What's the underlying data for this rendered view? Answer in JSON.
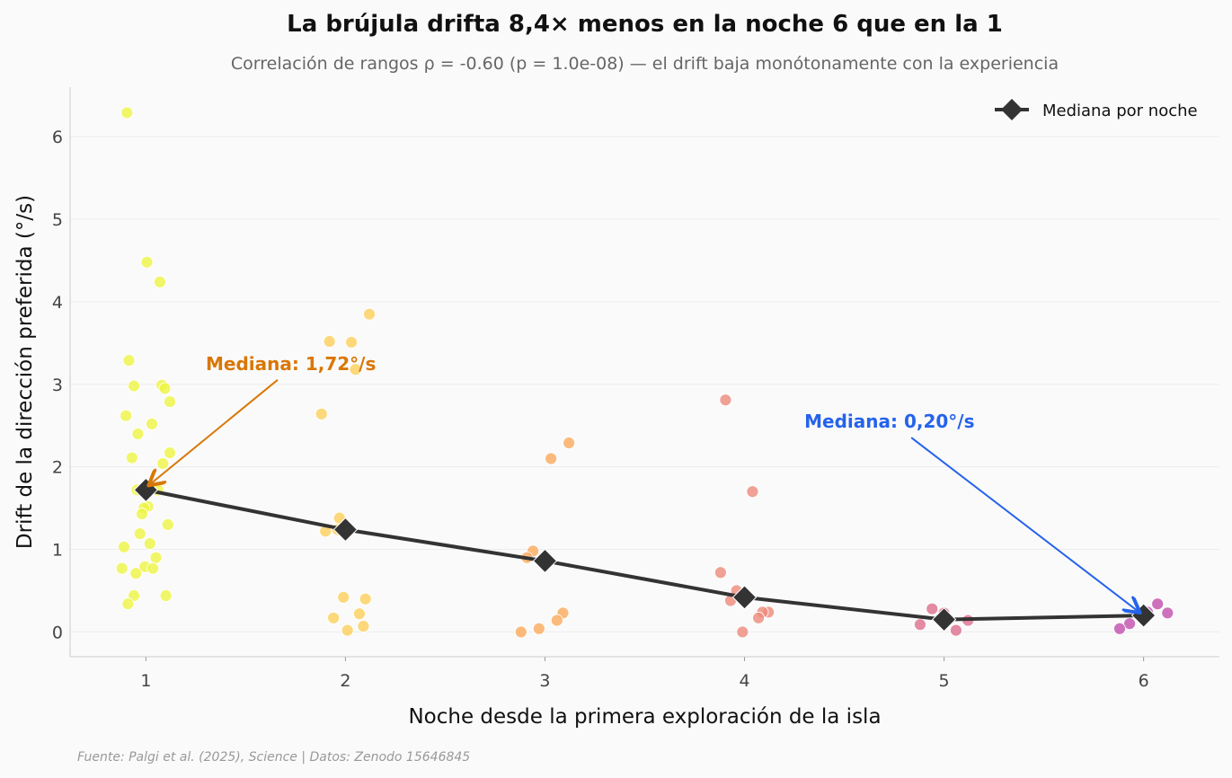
{
  "chart_data": {
    "type": "scatter",
    "title": "La brújula drifta 8,4× menos en la noche 6 que en la 1",
    "subtitle": "Correlación de rangos ρ = -0.60 (p = 1.0e-08) — el drift baja monótonamente con la experiencia",
    "xlabel": "Noche desde la primera exploración de la isla",
    "ylabel": "Drift de la dirección preferida (°/s)",
    "xlim": [
      0.62,
      6.38
    ],
    "ylim": [
      -0.3,
      6.6
    ],
    "xticks": [
      1,
      2,
      3,
      4,
      5,
      6
    ],
    "yticks": [
      0,
      1,
      2,
      3,
      4,
      5,
      6
    ],
    "grid": "horizontal",
    "legend_position": "top-right",
    "source": "Fuente: Palgi et al. (2025), Science | Datos: Zenodo 15646845",
    "groups": [
      {
        "night": 1,
        "color": "#eef542",
        "points": [
          [
            0.905,
            6.29
          ],
          [
            1.005,
            4.48
          ],
          [
            1.07,
            4.24
          ],
          [
            0.915,
            3.29
          ],
          [
            0.94,
            2.98
          ],
          [
            1.08,
            2.99
          ],
          [
            1.095,
            2.95
          ],
          [
            1.12,
            2.79
          ],
          [
            0.9,
            2.62
          ],
          [
            1.03,
            2.52
          ],
          [
            0.96,
            2.4
          ],
          [
            1.12,
            2.17
          ],
          [
            0.93,
            2.11
          ],
          [
            1.085,
            2.04
          ],
          [
            0.955,
            1.72
          ],
          [
            1.06,
            1.72
          ],
          [
            1.01,
            1.52
          ],
          [
            0.99,
            1.5
          ],
          [
            0.98,
            1.43
          ],
          [
            1.11,
            1.3
          ],
          [
            0.97,
            1.19
          ],
          [
            1.02,
            1.07
          ],
          [
            0.89,
            1.03
          ],
          [
            1.05,
            0.9
          ],
          [
            0.995,
            0.79
          ],
          [
            1.035,
            0.77
          ],
          [
            0.88,
            0.77
          ],
          [
            0.95,
            0.71
          ],
          [
            0.94,
            0.44
          ],
          [
            1.1,
            0.44
          ],
          [
            0.91,
            0.34
          ]
        ]
      },
      {
        "night": 2,
        "color": "#fdd05a",
        "points": [
          [
            2.12,
            3.85
          ],
          [
            1.92,
            3.52
          ],
          [
            2.03,
            3.51
          ],
          [
            2.05,
            3.18
          ],
          [
            1.88,
            2.64
          ],
          [
            1.97,
            1.38
          ],
          [
            1.9,
            1.22
          ],
          [
            1.96,
            1.24
          ],
          [
            1.99,
            0.42
          ],
          [
            2.1,
            0.4
          ],
          [
            2.07,
            0.22
          ],
          [
            1.94,
            0.17
          ],
          [
            2.09,
            0.07
          ],
          [
            2.01,
            0.02
          ]
        ]
      },
      {
        "night": 3,
        "color": "#fbaa5c",
        "points": [
          [
            3.12,
            2.29
          ],
          [
            3.03,
            2.1
          ],
          [
            2.94,
            0.98
          ],
          [
            2.91,
            0.9
          ],
          [
            2.995,
            0.85
          ],
          [
            3.09,
            0.23
          ],
          [
            3.06,
            0.14
          ],
          [
            2.97,
            0.04
          ],
          [
            2.88,
            0.0
          ]
        ]
      },
      {
        "night": 4,
        "color": "#ee8a7a",
        "points": [
          [
            3.905,
            2.81
          ],
          [
            4.04,
            1.7
          ],
          [
            3.88,
            0.72
          ],
          [
            3.96,
            0.5
          ],
          [
            3.93,
            0.38
          ],
          [
            4.12,
            0.24
          ],
          [
            4.09,
            0.24
          ],
          [
            4.07,
            0.17
          ],
          [
            3.99,
            0.0
          ]
        ]
      },
      {
        "night": 5,
        "color": "#de6f8e",
        "points": [
          [
            4.94,
            0.28
          ],
          [
            5.0,
            0.23
          ],
          [
            5.12,
            0.14
          ],
          [
            4.88,
            0.09
          ],
          [
            5.06,
            0.02
          ]
        ]
      },
      {
        "night": 6,
        "color": "#c24fae",
        "points": [
          [
            6.07,
            0.34
          ],
          [
            6.12,
            0.23
          ],
          [
            6.02,
            0.24
          ],
          [
            5.93,
            0.1
          ],
          [
            5.88,
            0.04
          ]
        ]
      }
    ],
    "series": [
      {
        "name": "Mediana por noche",
        "color": "#333333",
        "x": [
          1,
          2,
          3,
          4,
          5,
          6
        ],
        "values": [
          1.72,
          1.24,
          0.86,
          0.42,
          0.15,
          0.2
        ]
      }
    ],
    "annotations": [
      {
        "text": "Mediana: 1,72°/s",
        "color": "#d97706",
        "xy": [
          1.0,
          1.72
        ],
        "xytext": [
          1.3,
          3.25
        ]
      },
      {
        "text": "Mediana: 0,20°/s",
        "color": "#2563eb",
        "xy": [
          6.0,
          0.2
        ],
        "xytext": [
          4.3,
          2.55
        ]
      }
    ]
  }
}
